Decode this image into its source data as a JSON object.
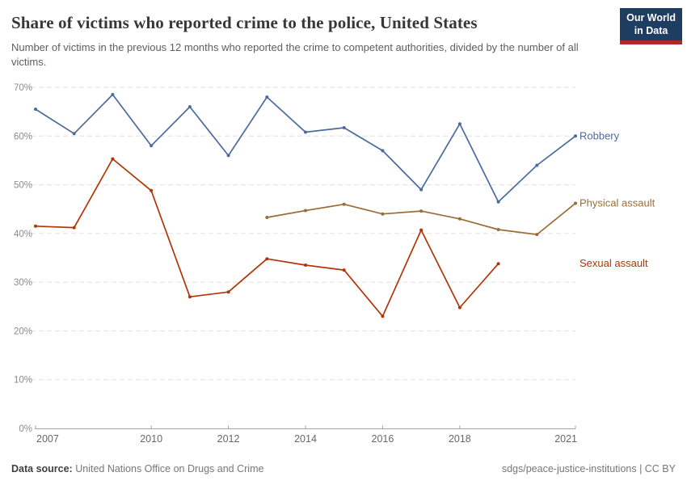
{
  "header": {
    "title": "Share of victims who reported crime to the police, United States",
    "subtitle": "Number of victims in the previous 12 months who reported the crime to competent authorities, divided by the number of all victims.",
    "logo_line1": "Our World",
    "logo_line2": "in Data",
    "logo_bg_color": "#1d3d63",
    "logo_accent_color": "#b0262c"
  },
  "footer": {
    "source_label": "Data source:",
    "source_value": "United Nations Office on Drugs and Crime",
    "license": "sdgs/peace-justice-institutions | CC BY"
  },
  "chart_data": {
    "type": "line",
    "title": "Share of victims who reported crime to the police, United States",
    "xlabel": "",
    "ylabel": "",
    "ylim": [
      0,
      70
    ],
    "y_ticks": [
      0,
      10,
      20,
      30,
      40,
      50,
      60,
      70
    ],
    "y_tick_suffix": "%",
    "x_range": [
      2007,
      2021
    ],
    "x_ticks": [
      2007,
      2010,
      2012,
      2014,
      2016,
      2018,
      2021
    ],
    "grid": "horizontal-dashed",
    "legend_position": "right-end-labels",
    "axis_color": "#a3a3a3",
    "gridline_color": "#e0e0e0",
    "series": [
      {
        "name": "Robbery",
        "color": "#4C6A9C",
        "points": [
          [
            2007,
            65.5
          ],
          [
            2008,
            60.5
          ],
          [
            2009,
            68.5
          ],
          [
            2010,
            58
          ],
          [
            2011,
            66
          ],
          [
            2012,
            56
          ],
          [
            2013,
            68
          ],
          [
            2014,
            60.8
          ],
          [
            2015,
            61.7
          ],
          [
            2016,
            57
          ],
          [
            2017,
            49
          ],
          [
            2018,
            62.5
          ],
          [
            2019,
            46.5
          ],
          [
            2020,
            54
          ],
          [
            2021,
            60
          ]
        ]
      },
      {
        "name": "Physical assault",
        "color": "#996D39",
        "points": [
          [
            2013,
            43.3
          ],
          [
            2014,
            44.7
          ],
          [
            2015,
            46
          ],
          [
            2016,
            44
          ],
          [
            2017,
            44.6
          ],
          [
            2018,
            43
          ],
          [
            2019,
            40.8
          ],
          [
            2020,
            39.8
          ],
          [
            2021,
            46.2
          ]
        ]
      },
      {
        "name": "Sexual assault",
        "color": "#B13507",
        "points": [
          [
            2007,
            41.5
          ],
          [
            2008,
            41.2
          ],
          [
            2009,
            55.3
          ],
          [
            2010,
            48.8
          ],
          [
            2011,
            27
          ],
          [
            2012,
            28
          ],
          [
            2013,
            34.8
          ],
          [
            2014,
            33.5
          ],
          [
            2015,
            32.5
          ],
          [
            2016,
            23
          ],
          [
            2017,
            40.7
          ],
          [
            2018,
            24.8
          ],
          [
            2019,
            33.8
          ]
        ]
      }
    ]
  }
}
